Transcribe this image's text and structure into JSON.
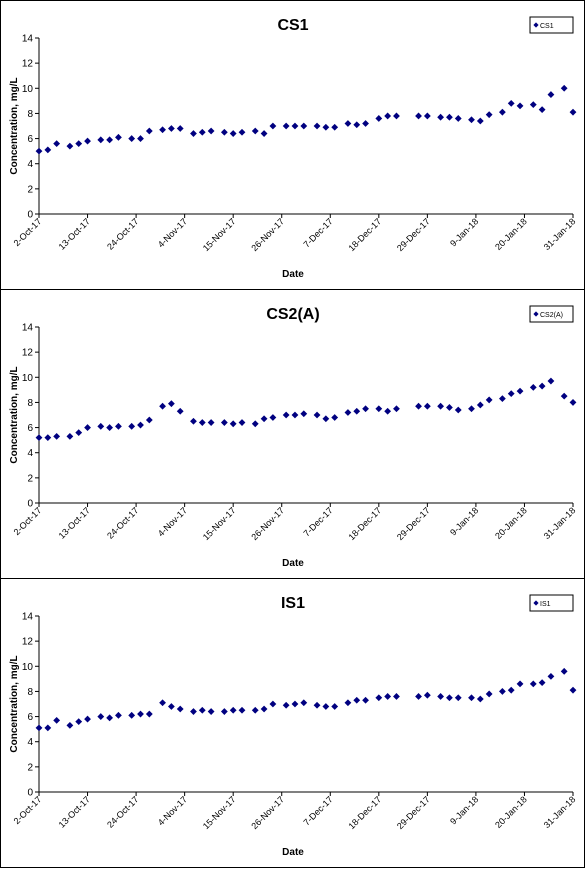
{
  "colors": {
    "marker": "#000080",
    "axis": "#000000",
    "panel_border": "#000000",
    "background": "#ffffff"
  },
  "chart_data": [
    {
      "type": "scatter",
      "title": "CS1",
      "xlabel": "Date",
      "ylabel": "Concentration, mg/L",
      "ylim": [
        0,
        14
      ],
      "yticks": [
        0,
        2,
        4,
        6,
        8,
        10,
        12,
        14
      ],
      "xlim": [
        "2017-10-02",
        "2018-01-31"
      ],
      "xtick_labels": [
        "2-Oct-17",
        "13-Oct-17",
        "24-Oct-17",
        "4-Nov-17",
        "15-Nov-17",
        "26-Nov-17",
        "7-Dec-17",
        "18-Dec-17",
        "29-Dec-17",
        "9-Jan-18",
        "20-Jan-18",
        "31-Jan-18"
      ],
      "xtick_dates": [
        "2017-10-02",
        "2017-10-13",
        "2017-10-24",
        "2017-11-04",
        "2017-11-15",
        "2017-11-26",
        "2017-12-07",
        "2017-12-18",
        "2017-12-29",
        "2018-01-09",
        "2018-01-20",
        "2018-01-31"
      ],
      "legend": "top-right",
      "grid": false,
      "series": [
        {
          "name": "CS1",
          "x": [
            "2017-10-02",
            "2017-10-04",
            "2017-10-06",
            "2017-10-09",
            "2017-10-11",
            "2017-10-13",
            "2017-10-16",
            "2017-10-18",
            "2017-10-20",
            "2017-10-23",
            "2017-10-25",
            "2017-10-27",
            "2017-10-30",
            "2017-11-01",
            "2017-11-03",
            "2017-11-06",
            "2017-11-08",
            "2017-11-10",
            "2017-11-13",
            "2017-11-15",
            "2017-11-17",
            "2017-11-20",
            "2017-11-22",
            "2017-11-24",
            "2017-11-27",
            "2017-11-29",
            "2017-12-01",
            "2017-12-04",
            "2017-12-06",
            "2017-12-08",
            "2017-12-11",
            "2017-12-13",
            "2017-12-15",
            "2017-12-18",
            "2017-12-20",
            "2017-12-22",
            "2017-12-27",
            "2017-12-29",
            "2018-01-01",
            "2018-01-03",
            "2018-01-05",
            "2018-01-08",
            "2018-01-10",
            "2018-01-12",
            "2018-01-15",
            "2018-01-17",
            "2018-01-19",
            "2018-01-22",
            "2018-01-24",
            "2018-01-26",
            "2018-01-29",
            "2018-01-31"
          ],
          "values": [
            5.0,
            5.1,
            5.6,
            5.4,
            5.6,
            5.8,
            5.9,
            5.9,
            6.1,
            6.0,
            6.0,
            6.6,
            6.7,
            6.8,
            6.8,
            6.4,
            6.5,
            6.6,
            6.5,
            6.4,
            6.5,
            6.6,
            6.4,
            7.0,
            7.0,
            7.0,
            7.0,
            7.0,
            6.9,
            6.9,
            7.2,
            7.1,
            7.2,
            7.6,
            7.8,
            7.8,
            7.8,
            7.8,
            7.7,
            7.7,
            7.6,
            7.5,
            7.4,
            7.9,
            8.1,
            8.8,
            8.6,
            8.7,
            8.3,
            9.5,
            10.0,
            8.1
          ]
        }
      ]
    },
    {
      "type": "scatter",
      "title": "CS2(A)",
      "xlabel": "Date",
      "ylabel": "Concentration, mg/L",
      "ylim": [
        0,
        14
      ],
      "yticks": [
        0,
        2,
        4,
        6,
        8,
        10,
        12,
        14
      ],
      "xlim": [
        "2017-10-02",
        "2018-01-31"
      ],
      "xtick_labels": [
        "2-Oct-17",
        "13-Oct-17",
        "24-Oct-17",
        "4-Nov-17",
        "15-Nov-17",
        "26-Nov-17",
        "7-Dec-17",
        "18-Dec-17",
        "29-Dec-17",
        "9-Jan-18",
        "20-Jan-18",
        "31-Jan-18"
      ],
      "xtick_dates": [
        "2017-10-02",
        "2017-10-13",
        "2017-10-24",
        "2017-11-04",
        "2017-11-15",
        "2017-11-26",
        "2017-12-07",
        "2017-12-18",
        "2017-12-29",
        "2018-01-09",
        "2018-01-20",
        "2018-01-31"
      ],
      "legend": "top-right",
      "grid": false,
      "series": [
        {
          "name": "CS2(A)",
          "x": [
            "2017-10-02",
            "2017-10-04",
            "2017-10-06",
            "2017-10-09",
            "2017-10-11",
            "2017-10-13",
            "2017-10-16",
            "2017-10-18",
            "2017-10-20",
            "2017-10-23",
            "2017-10-25",
            "2017-10-27",
            "2017-10-30",
            "2017-11-01",
            "2017-11-03",
            "2017-11-06",
            "2017-11-08",
            "2017-11-10",
            "2017-11-13",
            "2017-11-15",
            "2017-11-17",
            "2017-11-20",
            "2017-11-22",
            "2017-11-24",
            "2017-11-27",
            "2017-11-29",
            "2017-12-01",
            "2017-12-04",
            "2017-12-06",
            "2017-12-08",
            "2017-12-11",
            "2017-12-13",
            "2017-12-15",
            "2017-12-18",
            "2017-12-20",
            "2017-12-22",
            "2017-12-27",
            "2017-12-29",
            "2018-01-01",
            "2018-01-03",
            "2018-01-05",
            "2018-01-08",
            "2018-01-10",
            "2018-01-12",
            "2018-01-15",
            "2018-01-17",
            "2018-01-19",
            "2018-01-22",
            "2018-01-24",
            "2018-01-26",
            "2018-01-29",
            "2018-01-31"
          ],
          "values": [
            5.2,
            5.2,
            5.3,
            5.3,
            5.6,
            6.0,
            6.1,
            6.0,
            6.1,
            6.1,
            6.2,
            6.6,
            7.7,
            7.9,
            7.3,
            6.5,
            6.4,
            6.4,
            6.4,
            6.3,
            6.4,
            6.3,
            6.7,
            6.8,
            7.0,
            7.0,
            7.1,
            7.0,
            6.7,
            6.8,
            7.2,
            7.3,
            7.5,
            7.5,
            7.3,
            7.5,
            7.7,
            7.7,
            7.7,
            7.6,
            7.4,
            7.5,
            7.8,
            8.2,
            8.3,
            8.7,
            8.9,
            9.2,
            9.3,
            9.7,
            8.5,
            8.0
          ]
        }
      ]
    },
    {
      "type": "scatter",
      "title": "IS1",
      "xlabel": "Date",
      "ylabel": "Concentration, mg/L",
      "ylim": [
        0,
        14
      ],
      "yticks": [
        0,
        2,
        4,
        6,
        8,
        10,
        12,
        14
      ],
      "xlim": [
        "2017-10-02",
        "2018-01-31"
      ],
      "xtick_labels": [
        "2-Oct-17",
        "13-Oct-17",
        "24-Oct-17",
        "4-Nov-17",
        "15-Nov-17",
        "26-Nov-17",
        "7-Dec-17",
        "18-Dec-17",
        "29-Dec-17",
        "9-Jan-18",
        "20-Jan-18",
        "31-Jan-18"
      ],
      "xtick_dates": [
        "2017-10-02",
        "2017-10-13",
        "2017-10-24",
        "2017-11-04",
        "2017-11-15",
        "2017-11-26",
        "2017-12-07",
        "2017-12-18",
        "2017-12-29",
        "2018-01-09",
        "2018-01-20",
        "2018-01-31"
      ],
      "legend": "top-right",
      "grid": false,
      "series": [
        {
          "name": "IS1",
          "x": [
            "2017-10-02",
            "2017-10-04",
            "2017-10-06",
            "2017-10-09",
            "2017-10-11",
            "2017-10-13",
            "2017-10-16",
            "2017-10-18",
            "2017-10-20",
            "2017-10-23",
            "2017-10-25",
            "2017-10-27",
            "2017-10-30",
            "2017-11-01",
            "2017-11-03",
            "2017-11-06",
            "2017-11-08",
            "2017-11-10",
            "2017-11-13",
            "2017-11-15",
            "2017-11-17",
            "2017-11-20",
            "2017-11-22",
            "2017-11-24",
            "2017-11-27",
            "2017-11-29",
            "2017-12-01",
            "2017-12-04",
            "2017-12-06",
            "2017-12-08",
            "2017-12-11",
            "2017-12-13",
            "2017-12-15",
            "2017-12-18",
            "2017-12-20",
            "2017-12-22",
            "2017-12-27",
            "2017-12-29",
            "2018-01-01",
            "2018-01-03",
            "2018-01-05",
            "2018-01-08",
            "2018-01-10",
            "2018-01-12",
            "2018-01-15",
            "2018-01-17",
            "2018-01-19",
            "2018-01-22",
            "2018-01-24",
            "2018-01-26",
            "2018-01-29",
            "2018-01-31"
          ],
          "values": [
            5.1,
            5.1,
            5.7,
            5.3,
            5.6,
            5.8,
            6.0,
            5.9,
            6.1,
            6.1,
            6.2,
            6.2,
            7.1,
            6.8,
            6.6,
            6.4,
            6.5,
            6.4,
            6.4,
            6.5,
            6.5,
            6.5,
            6.6,
            7.0,
            6.9,
            7.0,
            7.1,
            6.9,
            6.8,
            6.8,
            7.1,
            7.3,
            7.3,
            7.5,
            7.6,
            7.6,
            7.6,
            7.7,
            7.6,
            7.5,
            7.5,
            7.5,
            7.4,
            7.8,
            8.0,
            8.1,
            8.6,
            8.6,
            8.7,
            9.2,
            9.6,
            8.1
          ]
        }
      ]
    }
  ]
}
